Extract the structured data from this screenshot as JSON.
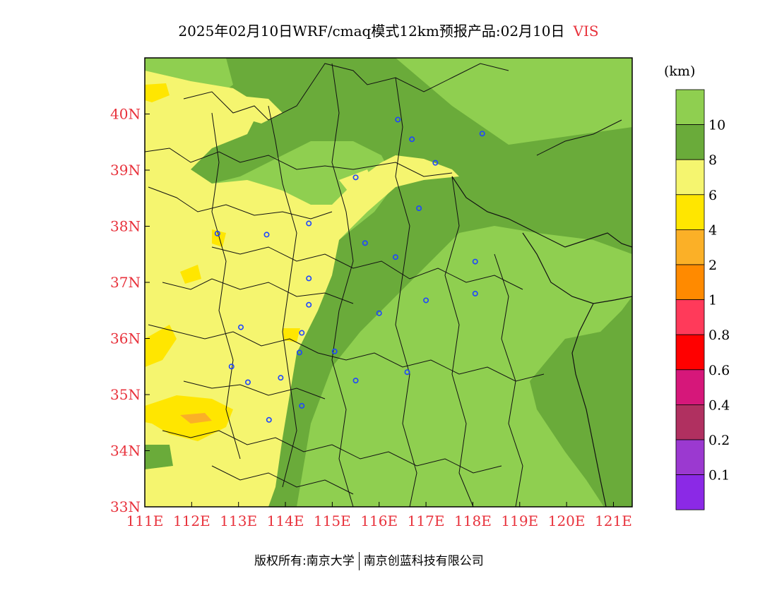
{
  "title": {
    "main": "2025年02月10日WRF/cmaq模式12km预报产品:02月10日",
    "variable": "VIS"
  },
  "colorbar": {
    "unit": "(km)",
    "bins": [
      {
        "color": "#8fcf50",
        "label": "10"
      },
      {
        "color": "#6aab3a",
        "label": "8"
      },
      {
        "color": "#f5f56f",
        "label": "6"
      },
      {
        "color": "#ffe600",
        "label": "4"
      },
      {
        "color": "#fbb027",
        "label": "2"
      },
      {
        "color": "#ff8a00",
        "label": "1"
      },
      {
        "color": "#ff3a5a",
        "label": "0.8"
      },
      {
        "color": "#ff0000",
        "label": "0.6"
      },
      {
        "color": "#d6177a",
        "label": "0.4"
      },
      {
        "color": "#b03060",
        "label": "0.2"
      },
      {
        "color": "#9b39d0",
        "label": "0.1"
      },
      {
        "color": "#8b29e6",
        "label": ""
      }
    ]
  },
  "map": {
    "lon_ticks": [
      "111E",
      "112E",
      "113E",
      "114E",
      "115E",
      "116E",
      "117E",
      "118E",
      "119E",
      "120E",
      "121E"
    ],
    "lat_ticks": [
      "33N",
      "34N",
      "35N",
      "36N",
      "37N",
      "38N",
      "39N",
      "40N"
    ],
    "lon_range": [
      111,
      121.4
    ],
    "lat_range": [
      33,
      41
    ],
    "city_markers": [
      [
        116.4,
        39.9
      ],
      [
        116.7,
        39.55
      ],
      [
        118.2,
        39.65
      ],
      [
        117.2,
        39.13
      ],
      [
        115.5,
        38.87
      ],
      [
        116.85,
        38.32
      ],
      [
        114.5,
        38.05
      ],
      [
        113.6,
        37.85
      ],
      [
        112.55,
        37.87
      ],
      [
        115.7,
        37.7
      ],
      [
        116.35,
        37.45
      ],
      [
        114.5,
        37.07
      ],
      [
        114.5,
        36.6
      ],
      [
        117.0,
        36.68
      ],
      [
        118.05,
        37.37
      ],
      [
        118.05,
        36.8
      ],
      [
        116.0,
        36.45
      ],
      [
        114.35,
        36.1
      ],
      [
        113.05,
        36.2
      ],
      [
        114.3,
        35.75
      ],
      [
        115.05,
        35.77
      ],
      [
        115.5,
        35.25
      ],
      [
        116.6,
        35.4
      ],
      [
        112.85,
        35.5
      ],
      [
        113.2,
        35.22
      ],
      [
        113.9,
        35.3
      ],
      [
        114.35,
        34.8
      ],
      [
        113.65,
        34.55
      ]
    ]
  },
  "footer": {
    "copyright_left": "版权所有:南京大学",
    "copyright_right": "南京创蓝科技有限公司"
  }
}
